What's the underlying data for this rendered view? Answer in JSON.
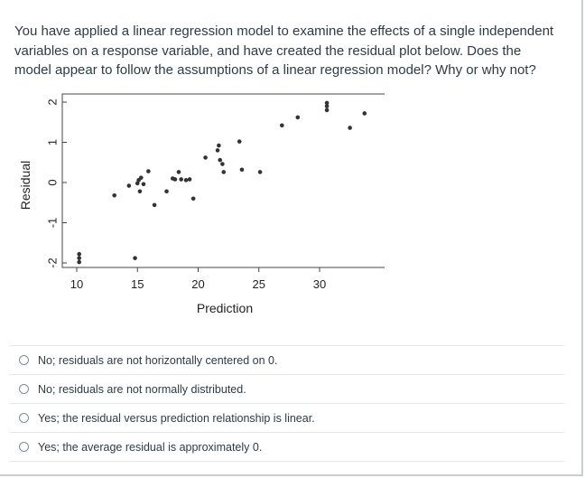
{
  "question": {
    "text": "You have applied a linear regression model to examine the effects of a single independent variables on a response variable, and have created the residual plot below. Does the model appear to follow the assumptions of a linear regression model? Why or why not?"
  },
  "chart_data": {
    "type": "scatter",
    "title": "",
    "xlabel": "Prediction",
    "ylabel": "Residual",
    "xlim": [
      9,
      35
    ],
    "ylim": [
      -2.1,
      2.1
    ],
    "x_ticks": [
      10,
      15,
      20,
      25,
      30
    ],
    "y_ticks": [
      -2,
      -1,
      0,
      1,
      2
    ],
    "x_tick_labels": [
      "10",
      "15",
      "20",
      "25",
      "30"
    ],
    "y_tick_labels": [
      "-2",
      "-1",
      "0",
      "1",
      "2"
    ],
    "grid": false,
    "legend": "none",
    "point_color": "#333333",
    "x": [
      10.2,
      10.2,
      10.2,
      13.1,
      14.3,
      14.8,
      15.0,
      15.1,
      15.2,
      15.3,
      15.5,
      15.9,
      16.4,
      17.4,
      17.9,
      18.1,
      18.4,
      18.6,
      19.0,
      19.3,
      19.6,
      20.6,
      21.6,
      21.7,
      21.8,
      22.0,
      22.1,
      23.4,
      23.6,
      25.1,
      26.9,
      28.2,
      30.6,
      30.6,
      30.6,
      32.5,
      33.7
    ],
    "y": [
      -1.78,
      -1.88,
      -1.98,
      -0.32,
      -0.08,
      -1.88,
      -0.02,
      0.06,
      -0.22,
      0.12,
      -0.04,
      0.28,
      -0.56,
      -0.22,
      0.1,
      0.08,
      0.26,
      0.08,
      0.06,
      0.08,
      -0.4,
      0.62,
      0.8,
      0.92,
      0.56,
      0.46,
      0.26,
      1.02,
      0.32,
      0.26,
      1.42,
      1.62,
      1.98,
      1.9,
      1.8,
      1.36,
      1.72
    ]
  },
  "answers": [
    {
      "label": "No; residuals are not horizontally centered on 0."
    },
    {
      "label": "No; residuals are not normally distributed."
    },
    {
      "label": "Yes; the residual versus prediction relationship is linear."
    },
    {
      "label": "Yes; the average residual is approximately 0."
    }
  ]
}
